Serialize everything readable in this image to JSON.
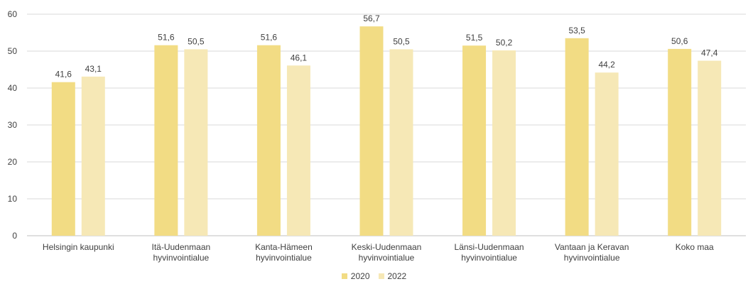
{
  "chart_data": {
    "type": "bar",
    "categories": [
      [
        "Helsingin kaupunki"
      ],
      [
        "Itä-Uudenmaan",
        "hyvinvointialue"
      ],
      [
        "Kanta-Hämeen",
        "hyvinvointialue"
      ],
      [
        "Keski-Uudenmaan",
        "hyvinvointialue"
      ],
      [
        "Länsi-Uudenmaan",
        "hyvinvointialue"
      ],
      [
        "Vantaan ja Keravan",
        "hyvinvointialue"
      ],
      [
        "Koko maa"
      ]
    ],
    "series": [
      {
        "name": "2020",
        "color": "#f2dc84",
        "values": [
          41.6,
          51.6,
          51.6,
          56.7,
          51.5,
          53.5,
          50.6
        ],
        "labels": [
          "41,6",
          "51,6",
          "51,6",
          "56,7",
          "51,5",
          "53,5",
          "50,6"
        ]
      },
      {
        "name": "2022",
        "color": "#f6e8b6",
        "values": [
          43.1,
          50.5,
          46.1,
          50.5,
          50.2,
          44.2,
          47.4
        ],
        "labels": [
          "43,1",
          "50,5",
          "46,1",
          "50,5",
          "50,2",
          "44,2",
          "47,4"
        ]
      }
    ],
    "ylim": [
      0,
      60
    ],
    "yticks": [
      0,
      10,
      20,
      30,
      40,
      50,
      60
    ],
    "grid": true,
    "legend": "bottom"
  }
}
